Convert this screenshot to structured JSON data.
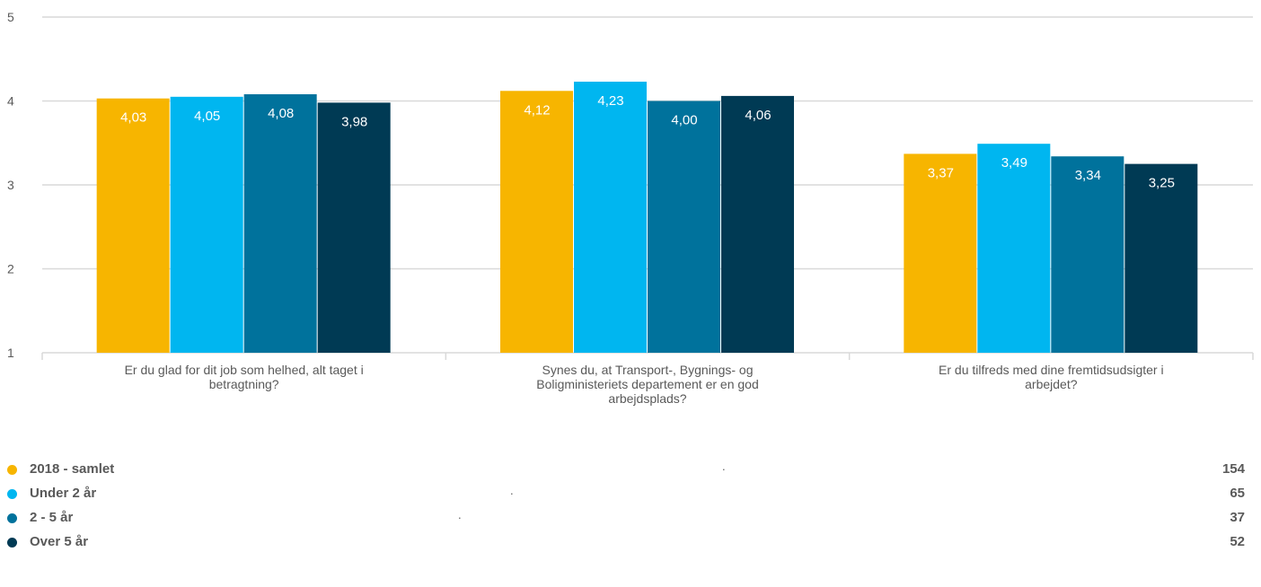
{
  "chart_data": {
    "type": "bar",
    "title": "",
    "xlabel": "",
    "ylabel": "",
    "ylim": [
      1,
      5
    ],
    "yticks": [
      "1",
      "2",
      "3",
      "4",
      "5"
    ],
    "grid": true,
    "categories": [
      [
        "Er du glad for dit job som helhed, alt taget i",
        "betragtning?"
      ],
      [
        "Synes du, at Transport-, Bygnings- og",
        "Boligministeriets departement er en god",
        "arbejdsplads?"
      ],
      [
        "Er du tilfreds med dine fremtidsudsigter i",
        "arbejdet?"
      ]
    ],
    "series": [
      {
        "name": "2018 - samlet",
        "color": "#F7B500",
        "values": [
          4.03,
          4.12,
          3.37
        ],
        "labels": [
          "4,03",
          "4,12",
          "3,37"
        ]
      },
      {
        "name": "Under 2 år",
        "color": "#00B6F0",
        "values": [
          4.05,
          4.23,
          3.49
        ],
        "labels": [
          "4,05",
          "4,23",
          "3,49"
        ]
      },
      {
        "name": "2 - 5 år",
        "color": "#00729C",
        "values": [
          4.08,
          4.0,
          3.34
        ],
        "labels": [
          "4,08",
          "4,00",
          "3,34"
        ]
      },
      {
        "name": "Over 5 år",
        "color": "#003A54",
        "values": [
          3.98,
          4.06,
          3.25
        ],
        "labels": [
          "3,98",
          "4,06",
          "3,25"
        ]
      }
    ],
    "legend": {
      "placement": "bottom",
      "items": [
        {
          "label": "2018 - samlet",
          "count": "154",
          "dot": "."
        },
        {
          "label": "Under 2 år",
          "count": "65",
          "dot": "."
        },
        {
          "label": "2 - 5 år",
          "count": "37",
          "dot": "."
        },
        {
          "label": "Over 5 år",
          "count": "52",
          "dot": "."
        }
      ]
    }
  }
}
